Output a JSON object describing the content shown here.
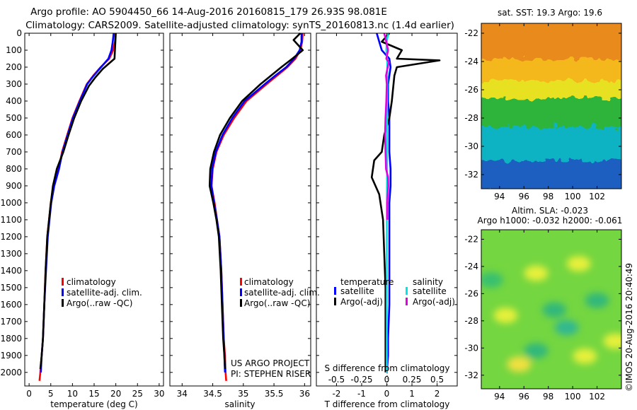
{
  "header": {
    "line1": "Argo profile: AO 5904450_66 14-Aug-2016 20160815_179 26.93S 98.081E",
    "line2": "Climatology: CARS2009. Satellite-adjusted climatology: synTS_20160813.nc (1.4d earlier)"
  },
  "credits": {
    "project": "US ARGO PROJECT",
    "pi": "PI: STEPHEN RISER",
    "imos": "©IMOS 20-Aug-2016 20:40:49"
  },
  "colors": {
    "climatology": "#ff0000",
    "satellite": "#0000ff",
    "argo": "#000000",
    "salinity_satellite": "#00e5e5",
    "salinity_argo": "#e000e0"
  },
  "chart_data": [
    {
      "type": "line",
      "panel": "temperature",
      "xlabel": "temperature (deg C)",
      "ylabel": "",
      "xlim": [
        -1,
        31
      ],
      "ylim": [
        2080,
        0
      ],
      "xticks": [
        0,
        5,
        10,
        15,
        20,
        25,
        30
      ],
      "yticks": [
        0,
        100,
        200,
        300,
        400,
        500,
        600,
        700,
        800,
        900,
        1000,
        1100,
        1200,
        1300,
        1400,
        1500,
        1600,
        1700,
        1800,
        1900,
        2000
      ],
      "legend": {
        "placement": "lower-center",
        "entries": [
          "climatology",
          "satellite-adj. clim.",
          "Argo(..raw -QC)"
        ]
      },
      "series": [
        {
          "name": "climatology",
          "color": "#ff0000",
          "x": [
            19.9,
            19.8,
            19.4,
            18.5,
            16.5,
            14.8,
            13.3,
            11.6,
            10.0,
            8.8,
            7.6,
            6.8,
            5.7,
            5.0,
            4.6,
            4.2,
            3.8,
            3.5,
            3.2,
            2.9,
            2.6,
            2.4
          ],
          "y": [
            0,
            50,
            100,
            150,
            200,
            250,
            300,
            400,
            500,
            600,
            700,
            800,
            900,
            1000,
            1100,
            1200,
            1400,
            1600,
            1800,
            1900,
            2000,
            2050
          ]
        },
        {
          "name": "satellite-adj. clim.",
          "color": "#0000ff",
          "x": [
            19.5,
            19.3,
            19.0,
            18.3,
            16.6,
            14.9,
            13.4,
            11.7,
            10.1,
            8.9,
            7.7,
            6.9,
            5.8,
            5.1,
            4.7,
            4.3,
            3.9,
            3.5,
            3.2,
            2.9,
            2.7
          ],
          "y": [
            0,
            50,
            100,
            150,
            200,
            250,
            300,
            400,
            500,
            600,
            700,
            800,
            900,
            1000,
            1100,
            1200,
            1400,
            1600,
            1800,
            1900,
            2000
          ]
        },
        {
          "name": "Argo(..raw -QC)",
          "color": "#000000",
          "x": [
            20.0,
            19.9,
            19.8,
            19.7,
            17.0,
            15.3,
            13.8,
            12.0,
            10.4,
            9.1,
            7.9,
            6.4,
            5.5,
            5.0,
            4.6,
            4.2,
            3.8,
            3.5,
            3.2,
            2.9,
            2.6
          ],
          "y": [
            0,
            50,
            100,
            150,
            210,
            260,
            310,
            400,
            500,
            600,
            700,
            800,
            900,
            1000,
            1100,
            1200,
            1400,
            1600,
            1800,
            1900,
            1980
          ]
        }
      ]
    },
    {
      "type": "line",
      "panel": "salinity",
      "xlabel": "salinity",
      "ylabel": "",
      "xlim": [
        33.8,
        36.1
      ],
      "ylim": [
        2080,
        0
      ],
      "xticks": [
        34,
        34.5,
        35,
        35.5,
        36
      ],
      "yticks": [
        0,
        100,
        200,
        300,
        400,
        500,
        600,
        700,
        800,
        900,
        1000,
        1100,
        1200,
        1300,
        1400,
        1500,
        1600,
        1700,
        1800,
        1900,
        2000
      ],
      "legend": {
        "placement": "lower-center",
        "entries": [
          "climatology",
          "satellite-adj. clim.",
          "Argo(..raw -QC)"
        ]
      },
      "series": [
        {
          "name": "climatology",
          "color": "#ff0000",
          "x": [
            35.97,
            35.96,
            35.93,
            35.85,
            35.72,
            35.55,
            35.38,
            35.05,
            34.85,
            34.68,
            34.56,
            34.5,
            34.48,
            34.53,
            34.57,
            34.61,
            34.64,
            34.66,
            34.68,
            34.7,
            34.71,
            34.72
          ],
          "y": [
            0,
            50,
            100,
            150,
            200,
            250,
            300,
            400,
            500,
            600,
            700,
            800,
            900,
            1000,
            1100,
            1200,
            1400,
            1600,
            1800,
            1900,
            2000,
            2050
          ]
        },
        {
          "name": "satellite-adj. clim.",
          "color": "#0000ff",
          "x": [
            35.95,
            35.95,
            35.92,
            35.83,
            35.7,
            35.52,
            35.35,
            35.02,
            34.82,
            34.66,
            34.55,
            34.49,
            34.48,
            34.52,
            34.57,
            34.61,
            34.64,
            34.66,
            34.68,
            34.69,
            34.7
          ],
          "y": [
            0,
            50,
            100,
            150,
            200,
            250,
            300,
            400,
            500,
            600,
            700,
            800,
            900,
            1000,
            1100,
            1200,
            1400,
            1600,
            1800,
            1900,
            2000
          ]
        },
        {
          "name": "Argo(..raw -QC)",
          "color": "#000000",
          "x": [
            35.93,
            35.82,
            35.97,
            35.8,
            35.62,
            35.45,
            35.28,
            34.98,
            34.78,
            34.62,
            34.52,
            34.46,
            34.45,
            34.51,
            34.56,
            34.6,
            34.63,
            34.65,
            34.67,
            34.69,
            34.7
          ],
          "y": [
            0,
            40,
            100,
            150,
            200,
            250,
            300,
            400,
            500,
            600,
            700,
            800,
            900,
            1000,
            1100,
            1200,
            1400,
            1600,
            1800,
            1900,
            1980
          ]
        }
      ]
    },
    {
      "type": "line",
      "panel": "difference",
      "xlabel": "T difference from climatology",
      "xlabel2": "S difference from climatology",
      "ylabel": "",
      "xlim": [
        -2.8,
        2.8
      ],
      "ylim": [
        2080,
        0
      ],
      "xticks": [
        -2,
        -1,
        0,
        1,
        2
      ],
      "xticks2": [
        -0.5,
        -0.25,
        0,
        0.25,
        0.5
      ],
      "xticks2_labels": [
        "-0.5",
        "-0.25",
        "0",
        "0.25",
        "0.5"
      ],
      "yticks": [
        0,
        100,
        200,
        300,
        400,
        500,
        600,
        700,
        800,
        900,
        1000,
        1100,
        1200,
        1300,
        1400,
        1500,
        1600,
        1700,
        1800,
        1900,
        2000
      ],
      "legend": {
        "placement": "lower-center",
        "temperature_title": "temperature",
        "salinity_title": "salinity",
        "temperature_entries": [
          "satellite",
          "Argo(-adj)"
        ],
        "salinity_entries": [
          "satellite",
          "Argo(-adj)"
        ]
      },
      "series": [
        {
          "name": "temperature satellite",
          "color": "#0000ff",
          "x": [
            -0.4,
            -0.3,
            -0.2,
            0.1,
            0.15,
            0.1,
            0.05,
            0.05,
            0.1,
            0.1,
            0.1,
            0.15,
            0.15,
            0.1,
            0.1,
            0.1,
            0.1,
            0.05,
            0.05,
            0.0
          ],
          "y": [
            0,
            50,
            100,
            150,
            200,
            250,
            300,
            400,
            500,
            600,
            700,
            800,
            900,
            1000,
            1200,
            1400,
            1600,
            1800,
            1900,
            2000
          ]
        },
        {
          "name": "temperature Argo(-adj)",
          "color": "#000000",
          "x": [
            0.1,
            -0.2,
            0.6,
            0.4,
            2.1,
            0.4,
            0.3,
            0.2,
            0.1,
            -0.1,
            -0.2,
            -0.5,
            -0.6,
            -0.3,
            -0.15,
            -0.1,
            -0.05,
            -0.05,
            -0.05,
            -0.05
          ],
          "y": [
            0,
            50,
            100,
            150,
            160,
            200,
            250,
            400,
            500,
            600,
            700,
            750,
            850,
            950,
            1100,
            1300,
            1500,
            1700,
            1900,
            2000
          ]
        },
        {
          "name": "salinity satellite",
          "color": "#00e5e5",
          "x": [
            0.05,
            0.0,
            -0.02,
            0.01,
            0.02,
            0.02,
            0.01,
            0.01,
            0.01,
            0.0,
            0.0,
            0.0,
            0.0
          ],
          "y": [
            0,
            50,
            100,
            150,
            200,
            300,
            400,
            600,
            800,
            1000,
            1400,
            1800,
            2000
          ]
        },
        {
          "name": "salinity Argo(-adj)",
          "color": "#e000e0",
          "x": [
            -0.1,
            -0.05,
            0.05,
            -0.02,
            0.08,
            -0.03,
            0.0,
            -0.02,
            -0.05,
            -0.07,
            -0.05,
            -0.03,
            0.05,
            0.06,
            0.02,
            0.02
          ],
          "y": [
            0,
            30,
            100,
            150,
            170,
            250,
            300,
            400,
            500,
            600,
            700,
            800,
            850,
            900,
            1000,
            1100
          ]
        }
      ]
    },
    {
      "type": "heatmap",
      "panel": "sst-map",
      "title": "sat. SST: 19.3 Argo: 19.6",
      "xlim": [
        92.5,
        104
      ],
      "ylim": [
        -33,
        -21.3
      ],
      "xticks": [
        94,
        96,
        98,
        100,
        102
      ],
      "yticks": [
        -22,
        -24,
        -26,
        -28,
        -30,
        -32
      ],
      "bands": [
        {
          "from_lat": -21.3,
          "to_lat": -24.0,
          "color": "#e98a1c"
        },
        {
          "from_lat": -24.0,
          "to_lat": -25.6,
          "color": "#f4b71c"
        },
        {
          "from_lat": -25.6,
          "to_lat": -26.8,
          "color": "#e8e120"
        },
        {
          "from_lat": -26.8,
          "to_lat": -28.8,
          "color": "#2fb43a"
        },
        {
          "from_lat": -28.8,
          "to_lat": -31.2,
          "color": "#10b3c2"
        },
        {
          "from_lat": -31.2,
          "to_lat": -33.0,
          "color": "#1f5fc0"
        }
      ]
    },
    {
      "type": "heatmap",
      "panel": "sla-map",
      "title": "Altim. SLA: -0.023",
      "subtitle": "Argo h1000: -0.032 h2000: -0.061",
      "xlim": [
        92.5,
        104
      ],
      "ylim": [
        -33,
        -21.3
      ],
      "xticks": [
        94,
        96,
        98,
        100,
        102
      ],
      "yticks": [
        -22,
        -24,
        -26,
        -28,
        -30,
        -32
      ],
      "base_color": "#74d640",
      "highlights": [
        {
          "lon": 97.0,
          "lat": -24.5,
          "color": "#e6f03a"
        },
        {
          "lon": 100.5,
          "lat": -23.8,
          "color": "#e6f03a"
        },
        {
          "lon": 94.5,
          "lat": -27.6,
          "color": "#e6f03a"
        },
        {
          "lon": 95.6,
          "lat": -31.2,
          "color": "#f0e040"
        },
        {
          "lon": 101.0,
          "lat": -30.6,
          "color": "#e6f03a"
        },
        {
          "lon": 103.5,
          "lat": -29.5,
          "color": "#e6f03a"
        },
        {
          "lon": 98.5,
          "lat": -27.2,
          "color": "#30b87a"
        },
        {
          "lon": 99.5,
          "lat": -28.5,
          "color": "#30b890"
        },
        {
          "lon": 97.0,
          "lat": -30.2,
          "color": "#30b87a"
        },
        {
          "lon": 102.0,
          "lat": -26.5,
          "color": "#30b87a"
        },
        {
          "lon": 93.3,
          "lat": -25.0,
          "color": "#38c070"
        }
      ]
    }
  ]
}
